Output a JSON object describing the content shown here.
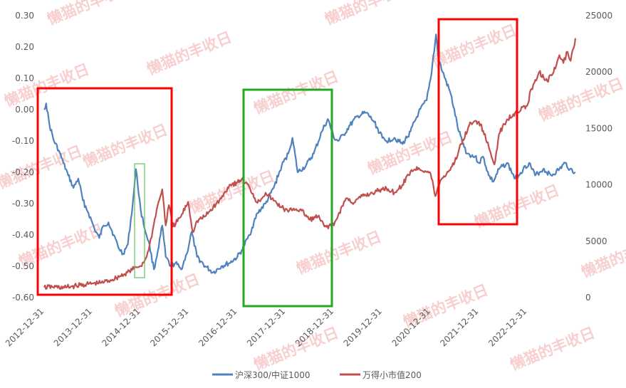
{
  "watermark": "懒猫的丰收日",
  "colors": {
    "series1": "#4f81bd",
    "series2": "#c0504d",
    "box_red": "#ff0000",
    "box_green": "#22a822",
    "box_small_green": "#5cc55c",
    "axis_text": "#595959",
    "watermark": "#f2a8a8"
  },
  "chart_data": {
    "type": "line",
    "title": "",
    "xlabel": "",
    "ylabel": "",
    "x_ticks": [
      "2012-12-31",
      "2013-12-31",
      "2014-12-31",
      "2015-12-31",
      "2016-12-31",
      "2017-12-31",
      "2018-12-31",
      "2019-12-31",
      "2020-12-31",
      "2021-12-31",
      "2022-12-31"
    ],
    "x_range": [
      "2012-12-31",
      "2023-12-31"
    ],
    "y_left": {
      "min": -0.6,
      "max": 0.3,
      "step": 0.1,
      "ticks": [
        "0.30",
        "0.20",
        "0.10",
        "0.00",
        "-0.10",
        "-0.20",
        "-0.30",
        "-0.40",
        "-0.50",
        "-0.60"
      ]
    },
    "y_right": {
      "min": 0,
      "max": 25000,
      "step": 5000,
      "ticks": [
        "25000",
        "20000",
        "15000",
        "10000",
        "5000",
        "0"
      ]
    },
    "legend_position": "bottom",
    "grid": false,
    "series": [
      {
        "name": "沪深300/中证1000",
        "axis": "left",
        "points": [
          [
            "2012-12-31",
            0.0
          ],
          [
            "2013-01-15",
            0.02
          ],
          [
            "2013-02-10",
            -0.05
          ],
          [
            "2013-03-15",
            -0.1
          ],
          [
            "2013-04-20",
            -0.13
          ],
          [
            "2013-05-25",
            -0.17
          ],
          [
            "2013-07-01",
            -0.21
          ],
          [
            "2013-08-10",
            -0.25
          ],
          [
            "2013-09-15",
            -0.22
          ],
          [
            "2013-10-20",
            -0.29
          ],
          [
            "2013-12-01",
            -0.33
          ],
          [
            "2014-01-15",
            -0.38
          ],
          [
            "2014-02-20",
            -0.41
          ],
          [
            "2014-03-25",
            -0.37
          ],
          [
            "2014-05-01",
            -0.36
          ],
          [
            "2014-06-10",
            -0.4
          ],
          [
            "2014-07-15",
            -0.44
          ],
          [
            "2014-08-20",
            -0.46
          ],
          [
            "2014-09-25",
            -0.43
          ],
          [
            "2014-11-01",
            -0.3
          ],
          [
            "2014-11-25",
            -0.19
          ],
          [
            "2014-12-31",
            -0.32
          ],
          [
            "2015-01-30",
            -0.38
          ],
          [
            "2015-03-01",
            -0.42
          ],
          [
            "2015-04-10",
            -0.51
          ],
          [
            "2015-05-10",
            -0.45
          ],
          [
            "2015-06-12",
            -0.37
          ],
          [
            "2015-07-08",
            -0.47
          ],
          [
            "2015-08-15",
            -0.5
          ],
          [
            "2015-09-20",
            -0.49
          ],
          [
            "2015-11-01",
            -0.51
          ],
          [
            "2015-12-15",
            -0.46
          ],
          [
            "2016-01-20",
            -0.39
          ],
          [
            "2016-03-01",
            -0.47
          ],
          [
            "2016-05-01",
            -0.5
          ],
          [
            "2016-07-01",
            -0.52
          ],
          [
            "2016-09-01",
            -0.5
          ],
          [
            "2016-11-01",
            -0.49
          ],
          [
            "2016-12-31",
            -0.47
          ],
          [
            "2017-02-01",
            -0.45
          ],
          [
            "2017-04-01",
            -0.4
          ],
          [
            "2017-06-01",
            -0.33
          ],
          [
            "2017-08-01",
            -0.3
          ],
          [
            "2017-10-01",
            -0.25
          ],
          [
            "2017-12-01",
            -0.18
          ],
          [
            "2018-01-20",
            -0.14
          ],
          [
            "2018-02-20",
            -0.09
          ],
          [
            "2018-04-01",
            -0.2
          ],
          [
            "2018-06-01",
            -0.18
          ],
          [
            "2018-08-01",
            -0.14
          ],
          [
            "2018-10-01",
            -0.07
          ],
          [
            "2018-11-15",
            -0.03
          ],
          [
            "2018-12-31",
            -0.09
          ],
          [
            "2019-02-01",
            -0.1
          ],
          [
            "2019-03-15",
            -0.08
          ],
          [
            "2019-05-01",
            -0.05
          ],
          [
            "2019-07-01",
            -0.02
          ],
          [
            "2019-09-01",
            -0.01
          ],
          [
            "2019-11-01",
            -0.04
          ],
          [
            "2020-01-01",
            -0.09
          ],
          [
            "2020-02-01",
            -0.1
          ],
          [
            "2020-04-01",
            -0.09
          ],
          [
            "2020-06-01",
            -0.11
          ],
          [
            "2020-08-01",
            -0.07
          ],
          [
            "2020-10-01",
            -0.01
          ],
          [
            "2020-12-01",
            0.03
          ],
          [
            "2021-01-01",
            0.1
          ],
          [
            "2021-02-10",
            0.24
          ],
          [
            "2021-03-01",
            0.16
          ],
          [
            "2021-04-01",
            0.12
          ],
          [
            "2021-06-01",
            0.05
          ],
          [
            "2021-08-01",
            -0.07
          ],
          [
            "2021-10-01",
            -0.14
          ],
          [
            "2021-12-01",
            -0.15
          ],
          [
            "2022-01-01",
            -0.17
          ],
          [
            "2022-02-01",
            -0.15
          ],
          [
            "2022-03-15",
            -0.21
          ],
          [
            "2022-04-20",
            -0.23
          ],
          [
            "2022-06-01",
            -0.19
          ],
          [
            "2022-08-01",
            -0.17
          ],
          [
            "2022-10-01",
            -0.22
          ],
          [
            "2022-12-01",
            -0.19
          ],
          [
            "2023-01-15",
            -0.17
          ],
          [
            "2023-03-01",
            -0.21
          ],
          [
            "2023-05-01",
            -0.19
          ],
          [
            "2023-07-01",
            -0.21
          ],
          [
            "2023-09-01",
            -0.19
          ],
          [
            "2023-10-15",
            -0.17
          ],
          [
            "2023-11-20",
            -0.19
          ],
          [
            "2023-12-31",
            -0.2
          ]
        ]
      },
      {
        "name": "万得小市值200",
        "axis": "right",
        "points": [
          [
            "2012-12-31",
            900
          ],
          [
            "2013-03-01",
            950
          ],
          [
            "2013-06-01",
            880
          ],
          [
            "2013-09-01",
            1050
          ],
          [
            "2013-12-01",
            1200
          ],
          [
            "2014-03-01",
            1300
          ],
          [
            "2014-06-01",
            1600
          ],
          [
            "2014-09-01",
            2100
          ],
          [
            "2014-12-01",
            2700
          ],
          [
            "2014-12-31",
            2800
          ],
          [
            "2015-01-31",
            3300
          ],
          [
            "2015-03-01",
            4200
          ],
          [
            "2015-04-01",
            6000
          ],
          [
            "2015-05-01",
            7800
          ],
          [
            "2015-06-12",
            9600
          ],
          [
            "2015-07-08",
            6400
          ],
          [
            "2015-08-01",
            8200
          ],
          [
            "2015-09-01",
            6300
          ],
          [
            "2015-11-01",
            7200
          ],
          [
            "2015-12-25",
            8500
          ],
          [
            "2016-01-28",
            5800
          ],
          [
            "2016-03-01",
            6800
          ],
          [
            "2016-05-01",
            7200
          ],
          [
            "2016-07-01",
            8000
          ],
          [
            "2016-09-01",
            8800
          ],
          [
            "2016-11-01",
            10000
          ],
          [
            "2016-12-31",
            10200
          ],
          [
            "2017-02-01",
            10500
          ],
          [
            "2017-04-01",
            9800
          ],
          [
            "2017-06-01",
            8400
          ],
          [
            "2017-08-01",
            9300
          ],
          [
            "2017-10-01",
            8600
          ],
          [
            "2017-12-01",
            8000
          ],
          [
            "2018-01-20",
            7600
          ],
          [
            "2018-03-01",
            7900
          ],
          [
            "2018-05-01",
            7700
          ],
          [
            "2018-07-01",
            6900
          ],
          [
            "2018-09-01",
            7200
          ],
          [
            "2018-10-20",
            6300
          ],
          [
            "2018-12-31",
            6400
          ],
          [
            "2019-02-01",
            7300
          ],
          [
            "2019-04-01",
            8800
          ],
          [
            "2019-06-01",
            8400
          ],
          [
            "2019-08-01",
            9000
          ],
          [
            "2019-10-01",
            9200
          ],
          [
            "2019-12-31",
            9600
          ],
          [
            "2020-02-01",
            9700
          ],
          [
            "2020-04-01",
            9300
          ],
          [
            "2020-06-01",
            10000
          ],
          [
            "2020-08-01",
            11200
          ],
          [
            "2020-10-01",
            11500
          ],
          [
            "2020-12-31",
            11000
          ],
          [
            "2021-02-05",
            9000
          ],
          [
            "2021-03-15",
            10400
          ],
          [
            "2021-05-01",
            11000
          ],
          [
            "2021-07-01",
            12000
          ],
          [
            "2021-09-01",
            14000
          ],
          [
            "2021-11-01",
            15500
          ],
          [
            "2021-12-31",
            15600
          ],
          [
            "2022-02-01",
            14800
          ],
          [
            "2022-04-27",
            11800
          ],
          [
            "2022-06-01",
            14500
          ],
          [
            "2022-08-01",
            15800
          ],
          [
            "2022-10-01",
            16400
          ],
          [
            "2022-12-31",
            17000
          ],
          [
            "2023-02-01",
            18500
          ],
          [
            "2023-04-01",
            20000
          ],
          [
            "2023-06-01",
            19200
          ],
          [
            "2023-08-01",
            20300
          ],
          [
            "2023-09-01",
            21500
          ],
          [
            "2023-10-01",
            20800
          ],
          [
            "2023-11-01",
            21800
          ],
          [
            "2023-11-25",
            21000
          ],
          [
            "2023-12-31",
            23000
          ]
        ]
      }
    ]
  }
}
